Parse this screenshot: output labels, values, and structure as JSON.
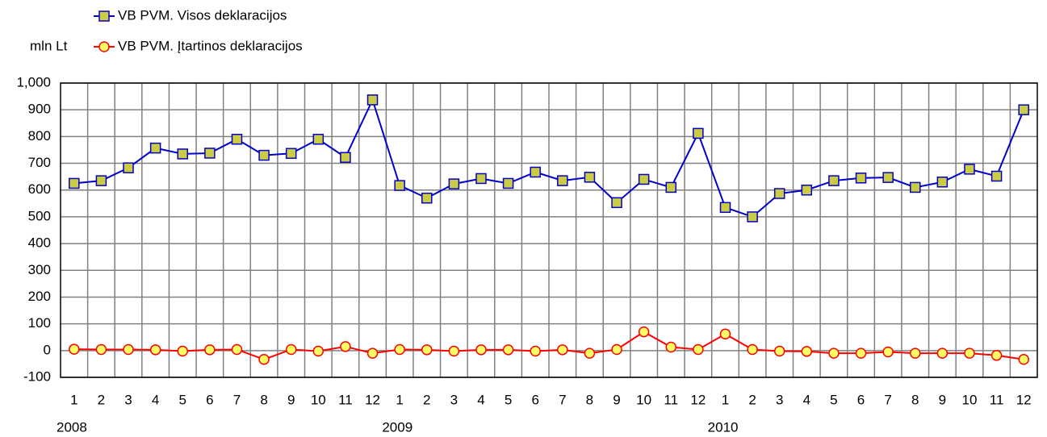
{
  "chart_data": {
    "type": "line",
    "y_label": "mln Lt",
    "categories": [
      "1",
      "2",
      "3",
      "4",
      "5",
      "6",
      "7",
      "8",
      "9",
      "10",
      "11",
      "12",
      "1",
      "2",
      "3",
      "4",
      "5",
      "6",
      "7",
      "8",
      "9",
      "10",
      "11",
      "12",
      "1",
      "2",
      "3",
      "4",
      "5",
      "6",
      "7",
      "8",
      "9",
      "10",
      "11",
      "12"
    ],
    "year_labels": [
      "2008",
      "2009",
      "2010"
    ],
    "series": [
      {
        "name": "VB PVM. Visos deklaracijos",
        "color": "#0000cc",
        "marker": "square",
        "marker_color": "#cccc44",
        "values": [
          625,
          635,
          683,
          757,
          735,
          738,
          790,
          730,
          737,
          790,
          722,
          937,
          617,
          570,
          623,
          643,
          625,
          667,
          635,
          648,
          553,
          640,
          610,
          812,
          535,
          500,
          587,
          600,
          635,
          645,
          647,
          610,
          630,
          678,
          652,
          900
        ]
      },
      {
        "name": "VB PVM.  Įtartinos deklaracijos",
        "color": "#ff0000",
        "marker": "circle",
        "marker_color": "#ffff66",
        "values": [
          5,
          4,
          4,
          3,
          -2,
          3,
          4,
          -33,
          4,
          -2,
          15,
          -10,
          4,
          3,
          -2,
          3,
          3,
          -2,
          3,
          -10,
          4,
          70,
          13,
          4,
          62,
          4,
          -2,
          -3,
          -10,
          -10,
          -5,
          -10,
          -10,
          -10,
          -18,
          -33
        ]
      }
    ],
    "ylim": [
      -100,
      1000
    ],
    "yticks": [
      -100,
      0,
      100,
      200,
      300,
      400,
      500,
      600,
      700,
      800,
      900,
      {
        "value": 1000,
        "label": "1,000"
      }
    ],
    "grid": true
  }
}
